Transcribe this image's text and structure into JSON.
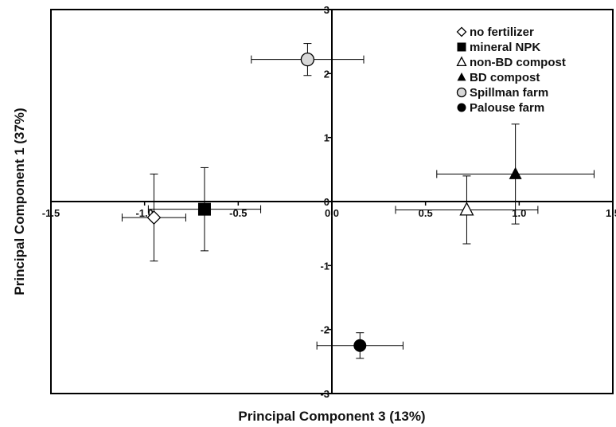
{
  "chart_data": {
    "type": "scatter",
    "title": "",
    "xlabel": "Principal Component 3 (13%)",
    "ylabel": "Principal Component 1 (37%)",
    "xlim": [
      -1.5,
      1.5
    ],
    "ylim": [
      -3,
      3
    ],
    "x_ticks": [
      "-1.5",
      "-1.0",
      "-0.5",
      "0.0",
      "0.5",
      "1.0",
      "1.5"
    ],
    "y_ticks": [
      "3",
      "2",
      "1",
      "0",
      "-1",
      "-2",
      "-3"
    ],
    "grid": false,
    "legend_position": "top-right",
    "series": [
      {
        "name": "no fertilizer",
        "marker": "diamond-open",
        "x": -0.95,
        "y": -0.25,
        "x_err": 0.17,
        "y_err": 0.68
      },
      {
        "name": "mineral NPK",
        "marker": "square-filled",
        "x": -0.68,
        "y": -0.12,
        "x_err": 0.3,
        "y_err": 0.65
      },
      {
        "name": "non-BD compost",
        "marker": "triangle-open",
        "x": 0.72,
        "y": -0.13,
        "x_err": 0.38,
        "y_err": 0.53
      },
      {
        "name": "BD compost",
        "marker": "triangle-filled",
        "x": 0.98,
        "y": 0.43,
        "x_err": 0.42,
        "y_err": 0.78
      },
      {
        "name": "Spillman farm",
        "marker": "circle-gray",
        "x": -0.13,
        "y": 2.22,
        "x_err": 0.3,
        "y_err": 0.25
      },
      {
        "name": "Palouse farm",
        "marker": "circle-filled",
        "x": 0.15,
        "y": -2.25,
        "x_err": 0.23,
        "y_err": 0.2
      }
    ]
  }
}
